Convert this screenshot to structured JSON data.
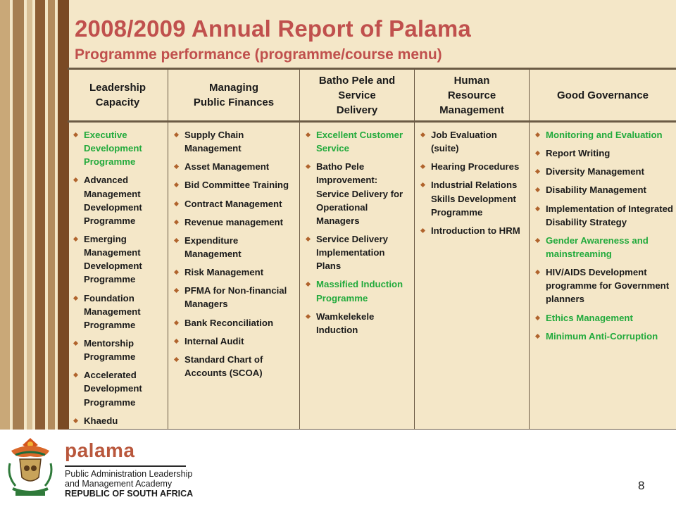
{
  "title": "2008/2009 Annual Report of Palama",
  "subtitle": "Programme performance (programme/course menu)",
  "columns": [
    {
      "header": "Leadership\nCapacity",
      "items": [
        {
          "text": "Executive Development Programme",
          "highlight": true
        },
        {
          "text": "Advanced Management Development Programme",
          "highlight": false
        },
        {
          "text": "Emerging Management Development Programme",
          "highlight": false
        },
        {
          "text": "Foundation Management Programme",
          "highlight": false
        },
        {
          "text": "Mentorship Programme",
          "highlight": false
        },
        {
          "text": "Accelerated Development Programme",
          "highlight": false
        },
        {
          "text": "Khaedu",
          "highlight": false
        }
      ]
    },
    {
      "header": "Managing\nPublic Finances",
      "items": [
        {
          "text": "Supply Chain Management",
          "highlight": false
        },
        {
          "text": "Asset Management",
          "highlight": false
        },
        {
          "text": "Bid Committee Training",
          "highlight": false
        },
        {
          "text": "Contract Management",
          "highlight": false
        },
        {
          "text": "Revenue management",
          "highlight": false
        },
        {
          "text": "Expenditure Management",
          "highlight": false
        },
        {
          "text": "Risk Management",
          "highlight": false
        },
        {
          "text": "PFMA for Non-financial Managers",
          "highlight": false
        },
        {
          "text": "Bank Reconciliation",
          "highlight": false
        },
        {
          "text": "Internal Audit",
          "highlight": false
        },
        {
          "text": "Standard Chart of Accounts (SCOA)",
          "highlight": false
        }
      ]
    },
    {
      "header": "Batho Pele and\nService\nDelivery",
      "items": [
        {
          "text": "Excellent Customer Service",
          "highlight": true
        },
        {
          "text": "Batho Pele Improvement: Service Delivery for Operational Managers",
          "highlight": false
        },
        {
          "text": "Service Delivery Implementation Plans",
          "highlight": false
        },
        {
          "text": "Massified Induction Programme",
          "highlight": true
        },
        {
          "text": "Wamkelekele Induction",
          "highlight": false
        }
      ]
    },
    {
      "header": "Human\nResource\nManagement",
      "items": [
        {
          "text": "Job Evaluation (suite)",
          "highlight": false
        },
        {
          "text": "Hearing Procedures",
          "highlight": false
        },
        {
          "text": "Industrial Relations Skills Development Programme",
          "highlight": false
        },
        {
          "text": "Introduction to HRM",
          "highlight": false
        }
      ]
    },
    {
      "header": "Good Governance",
      "items": [
        {
          "text": "Monitoring and Evaluation",
          "highlight": true
        },
        {
          "text": "Report Writing",
          "highlight": false
        },
        {
          "text": "Diversity Management",
          "highlight": false
        },
        {
          "text": "Disability Management",
          "highlight": false
        },
        {
          "text": "Implementation of Integrated Disability Strategy",
          "highlight": false
        },
        {
          "text": "Gender Awareness and mainstreaming",
          "highlight": true
        },
        {
          "text": "HIV/AIDS Development programme for Government planners",
          "highlight": false
        },
        {
          "text": "Ethics Management",
          "highlight": true
        },
        {
          "text": "Minimum Anti-Corruption",
          "highlight": true
        }
      ]
    }
  ],
  "footer": {
    "brand": "palama",
    "line1": "Public Administration Leadership",
    "line2": "and Management Academy",
    "line3": "REPUBLIC OF SOUTH AFRICA",
    "page_number": "8",
    "crest_icon": "coat-of-arms-icon"
  },
  "colors": {
    "title": "#c0504d",
    "highlight": "#22aa3c",
    "background": "#f4e7c8",
    "brand": "#b9573c"
  }
}
